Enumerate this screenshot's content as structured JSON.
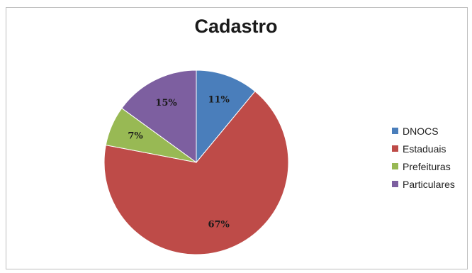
{
  "chart_data": {
    "type": "pie",
    "title": "Cadastro",
    "categories": [
      "DNOCS",
      "Estaduais",
      "Prefeituras",
      "Particulares"
    ],
    "values": [
      11,
      67,
      7,
      15
    ],
    "labels": [
      "11%",
      "67%",
      "7%",
      "15%"
    ],
    "colors": [
      "#4a7ebb",
      "#be4b48",
      "#98b954",
      "#7d5fa0"
    ],
    "legend_position": "right"
  }
}
